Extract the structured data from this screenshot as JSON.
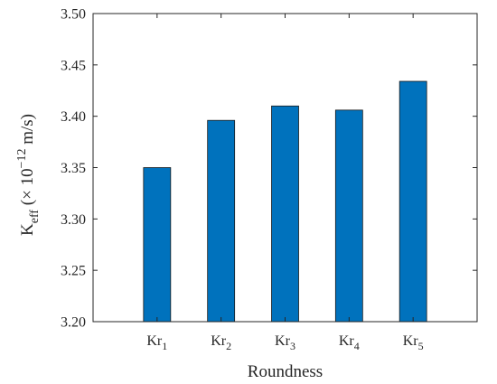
{
  "chart_data": {
    "type": "bar",
    "categories": [
      "Kr1",
      "Kr2",
      "Kr3",
      "Kr4",
      "Kr5"
    ],
    "category_labels": [
      {
        "base": "Kr",
        "sub": "1"
      },
      {
        "base": "Kr",
        "sub": "2"
      },
      {
        "base": "Kr",
        "sub": "3"
      },
      {
        "base": "Kr",
        "sub": "4"
      },
      {
        "base": "Kr",
        "sub": "5"
      }
    ],
    "values": [
      3.35,
      3.396,
      3.41,
      3.406,
      3.434
    ],
    "title": "",
    "xlabel": "Roundness",
    "ylabel": {
      "base": "K",
      "sub": "eff",
      "pre": " (× 10",
      "sup": "−12",
      "post": " m/s)"
    },
    "ylim": [
      3.2,
      3.5
    ],
    "yticks": [
      "3.20",
      "3.25",
      "3.30",
      "3.35",
      "3.40",
      "3.45",
      "3.50"
    ],
    "bar_color": "#0072BD",
    "bar_edge_color": "#1a1a1a",
    "grid": false,
    "legend": "none"
  }
}
